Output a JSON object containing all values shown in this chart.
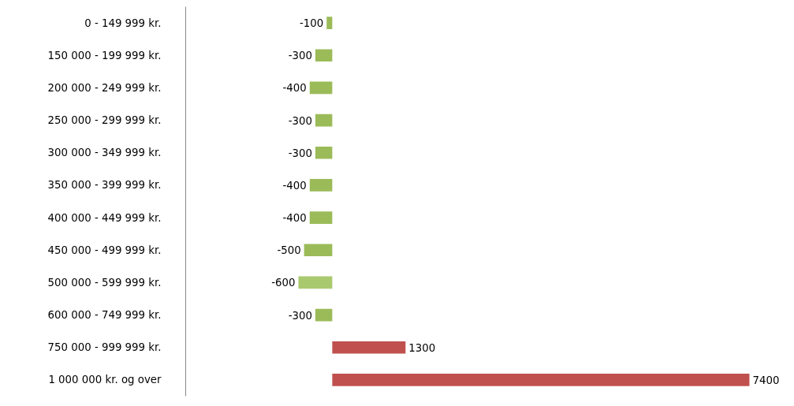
{
  "chart_data": {
    "type": "bar",
    "orientation": "horizontal",
    "categories": [
      "0 - 149 999 kr.",
      "150 000 - 199 999 kr.",
      "200 000 - 249 999 kr.",
      "250 000 - 299 999 kr.",
      "300 000 - 349 999 kr.",
      "350 000 - 399 999 kr.",
      "400 000 - 449 999 kr.",
      "450 000 - 499 999 kr.",
      "500 000 - 599 999 kr.",
      "600 000 - 749 999 kr.",
      "750 000 - 999 999 kr.",
      "1 000 000 kr. og over"
    ],
    "values": [
      -100,
      -300,
      -400,
      -300,
      -300,
      -400,
      -400,
      -500,
      -600,
      -300,
      1300,
      7400
    ],
    "colors": [
      "#9bbb59",
      "#9bbb59",
      "#9bbb59",
      "#9bbb59",
      "#9bbb59",
      "#9bbb59",
      "#9bbb59",
      "#9bbb59",
      "#a9c96f",
      "#9bbb59",
      "#c0504d",
      "#c0504d"
    ],
    "data_labels": true
  }
}
